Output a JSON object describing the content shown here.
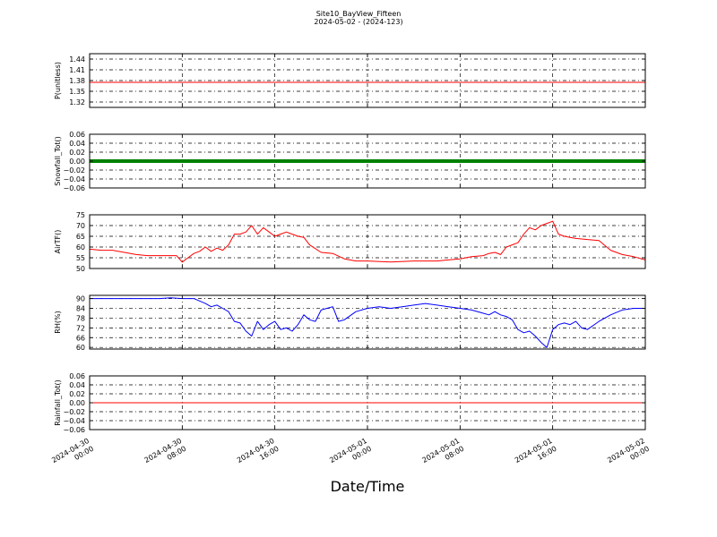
{
  "figure": {
    "title": "Site10_BayView_Fifteen",
    "subtitle": "2024-05-02 - (2024-123)",
    "xlabel": "Date/Time"
  },
  "chart_data": [
    {
      "type": "line",
      "ylabel": "P(unitless)",
      "ylim": [
        1.305,
        1.455
      ],
      "yticks": [
        "1.32",
        "1.35",
        "1.38",
        "1.41",
        "1.44"
      ],
      "grid": true,
      "color": "#ff0000",
      "series": [
        {
          "x": [
            "2024-04-30 00:00",
            "2024-05-02 00:00"
          ],
          "values": [
            1.375,
            1.375
          ]
        }
      ]
    },
    {
      "type": "line",
      "ylabel": "Snowfall_Tot()",
      "ylim": [
        -0.06,
        0.06
      ],
      "yticks": [
        "0.06",
        "0.04",
        "0.02",
        "0.00",
        "−0.02",
        "−0.04",
        "−0.06"
      ],
      "grid": true,
      "color": "#008000",
      "series": [
        {
          "x": [
            "2024-04-30 00:00",
            "2024-05-02 00:00"
          ],
          "values": [
            0.0,
            0.0
          ]
        }
      ]
    },
    {
      "type": "line",
      "ylabel": "AirTF()",
      "ylim": [
        50,
        75
      ],
      "yticks": [
        "75",
        "70",
        "65",
        "60",
        "55",
        "50"
      ],
      "grid": true,
      "color": "#ff0000",
      "series": [
        {
          "x": [
            "2024-04-30 00:00",
            "2024-04-30 01:00",
            "2024-04-30 02:00",
            "2024-04-30 03:00",
            "2024-04-30 04:00",
            "2024-04-30 05:00",
            "2024-04-30 06:00",
            "2024-04-30 07:00",
            "2024-04-30 07:30",
            "2024-04-30 08:00",
            "2024-04-30 08:30",
            "2024-04-30 09:00",
            "2024-04-30 09:30",
            "2024-04-30 10:00",
            "2024-04-30 10:30",
            "2024-04-30 11:00",
            "2024-04-30 11:30",
            "2024-04-30 12:00",
            "2024-04-30 12:30",
            "2024-04-30 13:00",
            "2024-04-30 13:30",
            "2024-04-30 14:00",
            "2024-04-30 14:30",
            "2024-04-30 15:00",
            "2024-04-30 15:30",
            "2024-04-30 16:00",
            "2024-04-30 16:30",
            "2024-04-30 17:00",
            "2024-04-30 17:30",
            "2024-04-30 18:00",
            "2024-04-30 18:30",
            "2024-04-30 19:00",
            "2024-04-30 20:00",
            "2024-04-30 21:00",
            "2024-04-30 22:00",
            "2024-04-30 23:00",
            "2024-05-01 00:00",
            "2024-05-01 02:00",
            "2024-05-01 04:00",
            "2024-05-01 06:00",
            "2024-05-01 07:00",
            "2024-05-01 08:00",
            "2024-05-01 09:00",
            "2024-05-01 10:00",
            "2024-05-01 10:30",
            "2024-05-01 11:00",
            "2024-05-01 11:30",
            "2024-05-01 12:00",
            "2024-05-01 12:30",
            "2024-05-01 13:00",
            "2024-05-01 13:30",
            "2024-05-01 14:00",
            "2024-05-01 14:30",
            "2024-05-01 15:00",
            "2024-05-01 15:30",
            "2024-05-01 16:00",
            "2024-05-01 16:30",
            "2024-05-01 17:00",
            "2024-05-01 17:30",
            "2024-05-01 18:00",
            "2024-05-01 19:00",
            "2024-05-01 20:00",
            "2024-05-01 21:00",
            "2024-05-01 22:00",
            "2024-05-01 23:00",
            "2024-05-02 00:00"
          ],
          "values": [
            59,
            58.5,
            58.5,
            57.5,
            56.5,
            56,
            56,
            56,
            56,
            53,
            55,
            57,
            58,
            60,
            58,
            59.5,
            58.5,
            61,
            66,
            66,
            67,
            70,
            66,
            69,
            67,
            65,
            66,
            67,
            66,
            65,
            64.5,
            61,
            57.5,
            57,
            54.5,
            53.5,
            53.5,
            53,
            53.5,
            53.5,
            54,
            54.5,
            55.5,
            56,
            57,
            57.5,
            56.5,
            60,
            61,
            62,
            66,
            69,
            68,
            70,
            71,
            72,
            66,
            65,
            64.5,
            64,
            63.5,
            63,
            58.5,
            56.5,
            55.5,
            54
          ]
        }
      ]
    },
    {
      "type": "line",
      "ylabel": "RH(%)",
      "ylim": [
        59,
        92
      ],
      "yticks": [
        "90",
        "84",
        "78",
        "72",
        "66",
        "60"
      ],
      "grid": true,
      "color": "#0000ff",
      "series": [
        {
          "x": [
            "2024-04-30 00:00",
            "2024-04-30 02:00",
            "2024-04-30 04:00",
            "2024-04-30 06:00",
            "2024-04-30 07:00",
            "2024-04-30 08:00",
            "2024-04-30 09:00",
            "2024-04-30 10:00",
            "2024-04-30 10:30",
            "2024-04-30 11:00",
            "2024-04-30 11:30",
            "2024-04-30 12:00",
            "2024-04-30 12:30",
            "2024-04-30 13:00",
            "2024-04-30 13:30",
            "2024-04-30 14:00",
            "2024-04-30 14:30",
            "2024-04-30 15:00",
            "2024-04-30 15:30",
            "2024-04-30 16:00",
            "2024-04-30 16:30",
            "2024-04-30 17:00",
            "2024-04-30 17:30",
            "2024-04-30 18:00",
            "2024-04-30 18:30",
            "2024-04-30 19:00",
            "2024-04-30 19:30",
            "2024-04-30 20:00",
            "2024-04-30 20:30",
            "2024-04-30 21:00",
            "2024-04-30 21:30",
            "2024-04-30 22:00",
            "2024-04-30 23:00",
            "2024-05-01 00:00",
            "2024-05-01 01:00",
            "2024-05-01 02:00",
            "2024-05-01 03:00",
            "2024-05-01 04:00",
            "2024-05-01 05:00",
            "2024-05-01 06:00",
            "2024-05-01 07:00",
            "2024-05-01 08:00",
            "2024-05-01 09:00",
            "2024-05-01 10:00",
            "2024-05-01 10:30",
            "2024-05-01 11:00",
            "2024-05-01 11:30",
            "2024-05-01 12:00",
            "2024-05-01 12:30",
            "2024-05-01 13:00",
            "2024-05-01 13:30",
            "2024-05-01 14:00",
            "2024-05-01 14:30",
            "2024-05-01 15:00",
            "2024-05-01 15:30",
            "2024-05-01 16:00",
            "2024-05-01 16:30",
            "2024-05-01 17:00",
            "2024-05-01 17:30",
            "2024-05-01 18:00",
            "2024-05-01 18:30",
            "2024-05-01 19:00",
            "2024-05-01 20:00",
            "2024-05-01 21:00",
            "2024-05-01 22:00",
            "2024-05-01 23:00",
            "2024-05-02 00:00"
          ],
          "values": [
            90,
            90,
            90,
            90,
            90.5,
            90,
            90,
            87,
            85,
            86,
            84,
            82,
            76,
            75,
            70,
            67,
            76,
            71,
            74,
            76,
            71,
            72,
            70,
            74,
            80,
            77,
            76,
            83,
            84,
            85,
            76,
            77,
            82,
            84,
            85,
            84,
            85,
            86,
            87,
            86,
            85,
            84,
            83,
            81,
            80,
            82,
            80,
            79,
            77,
            71,
            69,
            70,
            67,
            63,
            60,
            71,
            74,
            75,
            74,
            76,
            72,
            71,
            76,
            80,
            83,
            84,
            84
          ]
        }
      ]
    },
    {
      "type": "line",
      "ylabel": "Rainfall_Tot()",
      "ylim": [
        -0.06,
        0.06
      ],
      "yticks": [
        "0.06",
        "0.04",
        "0.02",
        "0.00",
        "−0.02",
        "−0.04",
        "−0.06"
      ],
      "grid": true,
      "color": "#ff0000",
      "series": [
        {
          "x": [
            "2024-04-30 00:00",
            "2024-05-02 00:00"
          ],
          "values": [
            0.0,
            0.0
          ]
        }
      ]
    }
  ],
  "xaxis": {
    "xlim": [
      "2024-04-30 00:00",
      "2024-05-02 00:00"
    ],
    "ticks": [
      {
        "x": "2024-04-30 00:00",
        "line1": "2024-04-30",
        "line2": "00:00"
      },
      {
        "x": "2024-04-30 08:00",
        "line1": "2024-04-30",
        "line2": "08:00"
      },
      {
        "x": "2024-04-30 16:00",
        "line1": "2024-04-30",
        "line2": "16:00"
      },
      {
        "x": "2024-05-01 00:00",
        "line1": "2024-05-01",
        "line2": "00:00"
      },
      {
        "x": "2024-05-01 08:00",
        "line1": "2024-05-01",
        "line2": "08:00"
      },
      {
        "x": "2024-05-01 16:00",
        "line1": "2024-05-01",
        "line2": "16:00"
      },
      {
        "x": "2024-05-02 00:00",
        "line1": "2024-05-02",
        "line2": "00:00"
      }
    ]
  }
}
